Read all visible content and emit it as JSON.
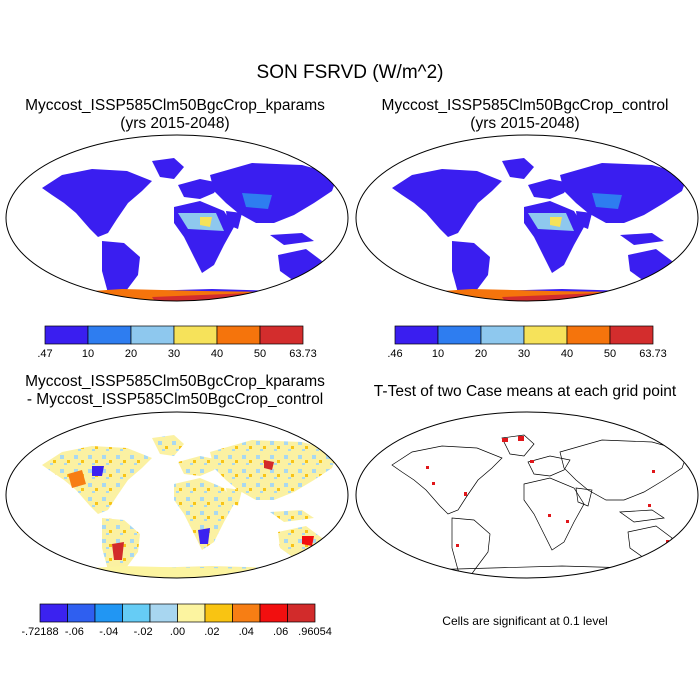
{
  "figure": {
    "title": "SON FSRVD (W/m^2)"
  },
  "panels": [
    {
      "id": "kparams",
      "title_line1": "Myccost_ISSP585Clm50BgcCrop_kparams",
      "title_line2": "(yrs 2015-2048)",
      "colorbar": {
        "colors": [
          "#3a1ef0",
          "#2e7df0",
          "#8ec8ee",
          "#f6e25a",
          "#f5740c",
          "#d32d2d"
        ],
        "labels": [
          ".47",
          "10",
          "20",
          "30",
          "40",
          "50",
          "63.73"
        ]
      }
    },
    {
      "id": "control",
      "title_line1": "Myccost_ISSP585Clm50BgcCrop_control",
      "title_line2": "(yrs 2015-2048)",
      "colorbar": {
        "colors": [
          "#3a1ef0",
          "#2e7df0",
          "#8ec8ee",
          "#f6e25a",
          "#f5740c",
          "#d32d2d"
        ],
        "labels": [
          ".46",
          "10",
          "20",
          "30",
          "40",
          "50",
          "63.73"
        ]
      }
    },
    {
      "id": "difference",
      "title_line1": "Myccost_ISSP585Clm50BgcCrop_kparams",
      "title_line2": "- Myccost_ISSP585Clm50BgcCrop_control",
      "colorbar": {
        "colors": [
          "#3b22f0",
          "#2f5ff0",
          "#2196f3",
          "#66ccf5",
          "#a8d6f0",
          "#fcf4a0",
          "#f9c412",
          "#f77e14",
          "#f20f0f",
          "#d22b2b"
        ],
        "labels": [
          "-.72188",
          "-.06",
          "-.04",
          "-.02",
          ".00",
          ".02",
          ".04",
          ".06",
          ".96054"
        ]
      }
    },
    {
      "id": "ttest",
      "title_line1": "T-Test of two Case means at each grid point",
      "note": "Cells are significant at 0.1 level"
    }
  ]
}
